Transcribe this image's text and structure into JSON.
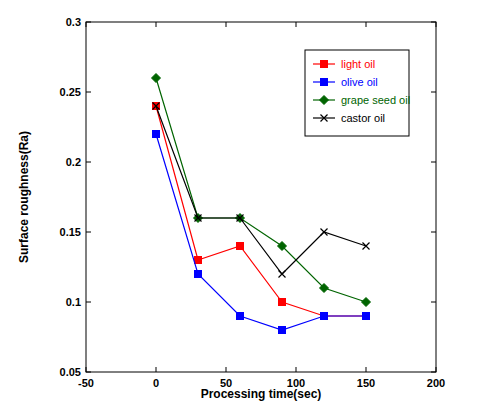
{
  "chart_data": {
    "type": "line",
    "xlabel": "Processing time(sec)",
    "ylabel": "Surface roughness(Ra)",
    "x": [
      0,
      30,
      60,
      90,
      120,
      150
    ],
    "series": [
      {
        "name": "light oil",
        "color": "#ff0000",
        "marker": "square",
        "values": [
          0.24,
          0.13,
          0.14,
          0.1,
          0.09,
          0.09
        ]
      },
      {
        "name": "olive oil",
        "color": "#0000ff",
        "marker": "square",
        "values": [
          0.22,
          0.12,
          0.09,
          0.08,
          0.09,
          0.09
        ]
      },
      {
        "name": "grape seed oil",
        "color": "#006400",
        "marker": "diamond",
        "values": [
          0.26,
          0.16,
          0.16,
          0.14,
          0.11,
          0.1
        ]
      },
      {
        "name": "castor oil",
        "color": "#000000",
        "marker": "x",
        "values": [
          0.24,
          0.16,
          0.16,
          0.12,
          0.15,
          0.14
        ]
      }
    ],
    "xlim": [
      -50,
      200
    ],
    "xticks": [
      -50,
      0,
      50,
      100,
      150,
      200
    ],
    "ylim": [
      0.05,
      0.3
    ],
    "yticks": [
      0.05,
      0.1,
      0.15,
      0.2,
      0.25,
      0.3
    ],
    "grid": false,
    "legend": "upper right"
  }
}
